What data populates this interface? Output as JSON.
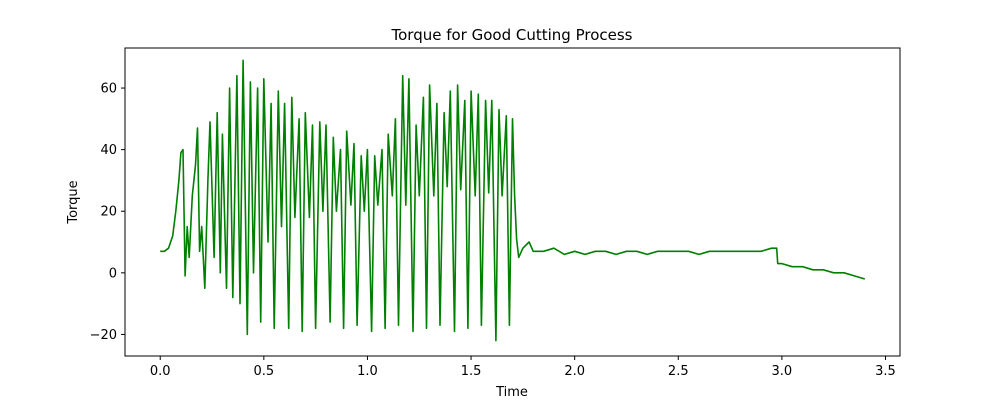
{
  "chart_data": {
    "type": "line",
    "title": "Torque for Good Cutting Process",
    "xlabel": "Time",
    "ylabel": "Torque",
    "xlim": [
      -0.17,
      3.57
    ],
    "ylim": [
      -27,
      73
    ],
    "xticks": [
      0.0,
      0.5,
      1.0,
      1.5,
      2.0,
      2.5,
      3.0,
      3.5
    ],
    "xtick_labels": [
      "0.0",
      "0.5",
      "1.0",
      "1.5",
      "2.0",
      "2.5",
      "3.0",
      "3.5"
    ],
    "yticks": [
      -20,
      0,
      20,
      40,
      60
    ],
    "ytick_labels": [
      "−20",
      "0",
      "20",
      "40",
      "60"
    ],
    "grid": false,
    "legend": "none",
    "series": [
      {
        "color": "#008000",
        "x": [
          0.0,
          0.02,
          0.04,
          0.06,
          0.075,
          0.09,
          0.1,
          0.11,
          0.12,
          0.13,
          0.14,
          0.155,
          0.17,
          0.18,
          0.19,
          0.2,
          0.215,
          0.23,
          0.24,
          0.26,
          0.275,
          0.29,
          0.3,
          0.32,
          0.335,
          0.35,
          0.37,
          0.385,
          0.4,
          0.42,
          0.435,
          0.45,
          0.47,
          0.485,
          0.5,
          0.52,
          0.535,
          0.55,
          0.57,
          0.585,
          0.6,
          0.62,
          0.635,
          0.65,
          0.67,
          0.685,
          0.7,
          0.72,
          0.735,
          0.75,
          0.77,
          0.785,
          0.8,
          0.82,
          0.835,
          0.85,
          0.87,
          0.885,
          0.9,
          0.92,
          0.935,
          0.95,
          0.97,
          0.985,
          1.0,
          1.02,
          1.035,
          1.05,
          1.07,
          1.085,
          1.1,
          1.12,
          1.135,
          1.15,
          1.17,
          1.185,
          1.2,
          1.22,
          1.235,
          1.25,
          1.27,
          1.285,
          1.3,
          1.32,
          1.335,
          1.35,
          1.37,
          1.385,
          1.4,
          1.42,
          1.435,
          1.45,
          1.47,
          1.485,
          1.5,
          1.52,
          1.535,
          1.55,
          1.57,
          1.585,
          1.6,
          1.62,
          1.635,
          1.65,
          1.67,
          1.685,
          1.7,
          1.71,
          1.72,
          1.73,
          1.75,
          1.78,
          1.8,
          1.85,
          1.9,
          1.95,
          2.0,
          2.05,
          2.1,
          2.15,
          2.2,
          2.25,
          2.3,
          2.35,
          2.4,
          2.45,
          2.5,
          2.55,
          2.6,
          2.65,
          2.7,
          2.75,
          2.8,
          2.85,
          2.9,
          2.95,
          2.975,
          2.98,
          3.0,
          3.05,
          3.1,
          3.15,
          3.2,
          3.25,
          3.3,
          3.35,
          3.4
        ],
        "y": [
          7,
          7,
          8,
          12,
          20,
          30,
          39,
          40,
          -1,
          15,
          5,
          25,
          35,
          47,
          7,
          15,
          -5,
          30,
          49,
          5,
          52,
          0,
          45,
          -5,
          60,
          -8,
          64,
          -10,
          69,
          -20,
          62,
          0,
          60,
          -16,
          63,
          10,
          55,
          -18,
          59,
          15,
          55,
          -18,
          57,
          18,
          50,
          -19,
          52,
          18,
          48,
          -18,
          49,
          20,
          48,
          -16,
          44,
          20,
          40,
          -18,
          46,
          22,
          42,
          -17,
          38,
          20,
          40,
          -19,
          38,
          22,
          40,
          -18,
          45,
          25,
          50,
          -17,
          64,
          22,
          63,
          -19,
          48,
          25,
          57,
          -18,
          61,
          25,
          55,
          -17,
          52,
          28,
          59,
          -19,
          61,
          27,
          56,
          -18,
          59,
          25,
          58,
          -17,
          56,
          26,
          56,
          -22,
          53,
          25,
          51,
          -17,
          50,
          25,
          11,
          5,
          8,
          10,
          7,
          7,
          8,
          6,
          7,
          6,
          7,
          7,
          6,
          7,
          7,
          6,
          7,
          7,
          7,
          7,
          6,
          7,
          7,
          7,
          7,
          7,
          7,
          8,
          8,
          3,
          3,
          2,
          2,
          1,
          1,
          0,
          0,
          -1,
          -2
        ]
      }
    ]
  }
}
